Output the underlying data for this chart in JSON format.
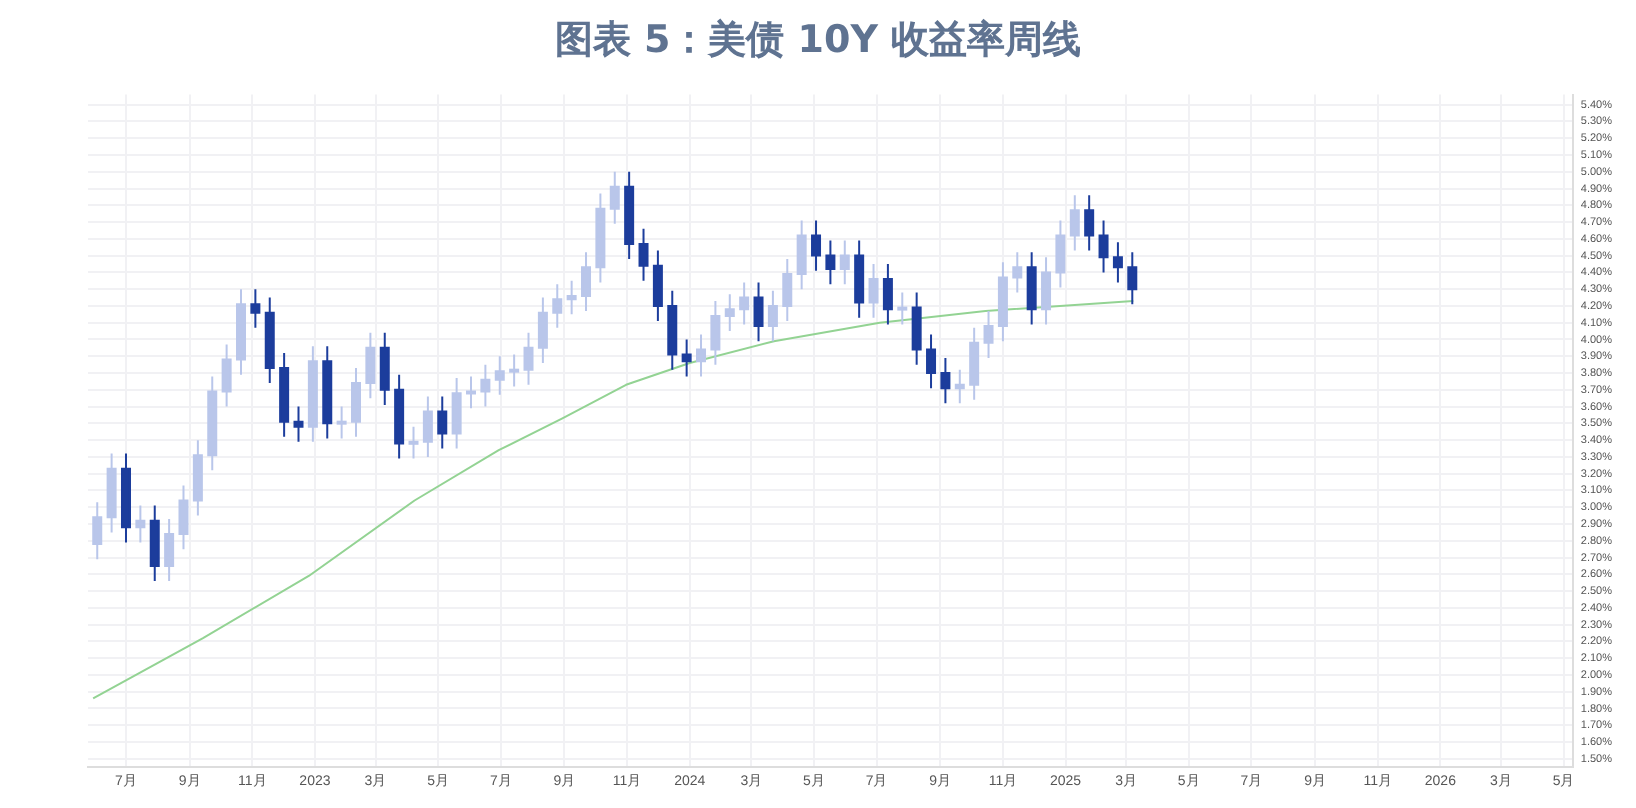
{
  "chart_data": {
    "type": "candlestick",
    "title": "图表 5：美债 10Y 收益率周线",
    "x": [
      "2022-06-03",
      "2022-06-17",
      "2022-07-01",
      "2022-07-15",
      "2022-07-29",
      "2022-08-12",
      "2022-08-26",
      "2022-09-09",
      "2022-09-23",
      "2022-10-07",
      "2022-10-21",
      "2022-11-04",
      "2022-11-18",
      "2022-12-02",
      "2022-12-16",
      "2022-12-30",
      "2023-01-13",
      "2023-01-27",
      "2023-02-10",
      "2023-02-24",
      "2023-03-10",
      "2023-03-24",
      "2023-04-07",
      "2023-04-21",
      "2023-05-05",
      "2023-05-19",
      "2023-06-02",
      "2023-06-16",
      "2023-06-30",
      "2023-07-14",
      "2023-07-28",
      "2023-08-11",
      "2023-08-25",
      "2023-09-08",
      "2023-09-22",
      "2023-10-06",
      "2023-10-20",
      "2023-11-03",
      "2023-11-17",
      "2023-12-01",
      "2023-12-15",
      "2023-12-29",
      "2024-01-12",
      "2024-01-26",
      "2024-02-09",
      "2024-02-23",
      "2024-03-08",
      "2024-03-22",
      "2024-04-05",
      "2024-04-19",
      "2024-05-03",
      "2024-05-17",
      "2024-05-31",
      "2024-06-14",
      "2024-06-28",
      "2024-07-12",
      "2024-07-26",
      "2024-08-09",
      "2024-08-23",
      "2024-09-06",
      "2024-09-20",
      "2024-10-04",
      "2024-10-18",
      "2024-11-01",
      "2024-11-15",
      "2024-11-29",
      "2024-12-13",
      "2024-12-27",
      "2025-01-10",
      "2025-01-24",
      "2025-02-07",
      "2025-02-21",
      "2025-03-07"
    ],
    "ohlc": [
      [
        2.78,
        3.03,
        2.69,
        2.94
      ],
      [
        2.94,
        3.32,
        2.85,
        3.23
      ],
      [
        3.23,
        3.32,
        2.79,
        2.88
      ],
      [
        2.88,
        3.01,
        2.79,
        2.92
      ],
      [
        2.92,
        3.01,
        2.56,
        2.65
      ],
      [
        2.65,
        2.93,
        2.56,
        2.84
      ],
      [
        2.84,
        3.13,
        2.75,
        3.04
      ],
      [
        3.04,
        3.4,
        2.95,
        3.31
      ],
      [
        3.31,
        3.78,
        3.22,
        3.69
      ],
      [
        3.69,
        3.97,
        3.6,
        3.88
      ],
      [
        3.88,
        4.3,
        3.79,
        4.21
      ],
      [
        4.21,
        4.3,
        4.07,
        4.16
      ],
      [
        4.16,
        4.25,
        3.74,
        3.83
      ],
      [
        3.83,
        3.92,
        3.42,
        3.51
      ],
      [
        3.51,
        3.6,
        3.39,
        3.48
      ],
      [
        3.48,
        3.96,
        3.39,
        3.87
      ],
      [
        3.87,
        3.96,
        3.41,
        3.5
      ],
      [
        3.5,
        3.6,
        3.41,
        3.51
      ],
      [
        3.51,
        3.83,
        3.42,
        3.74
      ],
      [
        3.74,
        4.04,
        3.65,
        3.95
      ],
      [
        3.95,
        4.04,
        3.61,
        3.7
      ],
      [
        3.7,
        3.79,
        3.29,
        3.38
      ],
      [
        3.38,
        3.48,
        3.29,
        3.39
      ],
      [
        3.39,
        3.66,
        3.3,
        3.57
      ],
      [
        3.57,
        3.66,
        3.35,
        3.44
      ],
      [
        3.44,
        3.77,
        3.35,
        3.68
      ],
      [
        3.68,
        3.78,
        3.59,
        3.69
      ],
      [
        3.69,
        3.85,
        3.6,
        3.76
      ],
      [
        3.76,
        3.9,
        3.67,
        3.81
      ],
      [
        3.81,
        3.91,
        3.72,
        3.82
      ],
      [
        3.82,
        4.04,
        3.73,
        3.95
      ],
      [
        3.95,
        4.25,
        3.86,
        4.16
      ],
      [
        4.16,
        4.33,
        4.07,
        4.24
      ],
      [
        4.24,
        4.35,
        4.15,
        4.26
      ],
      [
        4.26,
        4.52,
        4.17,
        4.43
      ],
      [
        4.43,
        4.87,
        4.34,
        4.78
      ],
      [
        4.78,
        5.0,
        4.69,
        4.91
      ],
      [
        4.91,
        5.0,
        4.48,
        4.57
      ],
      [
        4.57,
        4.66,
        4.35,
        4.44
      ],
      [
        4.44,
        4.53,
        4.11,
        4.2
      ],
      [
        4.2,
        4.29,
        3.82,
        3.91
      ],
      [
        3.91,
        4.0,
        3.78,
        3.87
      ],
      [
        3.87,
        4.03,
        3.78,
        3.94
      ],
      [
        3.94,
        4.23,
        3.85,
        4.14
      ],
      [
        4.14,
        4.27,
        4.05,
        4.18
      ],
      [
        4.18,
        4.34,
        4.09,
        4.25
      ],
      [
        4.25,
        4.34,
        3.99,
        4.08
      ],
      [
        4.08,
        4.29,
        3.99,
        4.2
      ],
      [
        4.2,
        4.48,
        4.11,
        4.39
      ],
      [
        4.39,
        4.71,
        4.3,
        4.62
      ],
      [
        4.62,
        4.71,
        4.41,
        4.5
      ],
      [
        4.5,
        4.59,
        4.33,
        4.42
      ],
      [
        4.42,
        4.59,
        4.33,
        4.5
      ],
      [
        4.5,
        4.59,
        4.13,
        4.22
      ],
      [
        4.22,
        4.45,
        4.13,
        4.36
      ],
      [
        4.36,
        4.45,
        4.09,
        4.18
      ],
      [
        4.18,
        4.28,
        4.09,
        4.19
      ],
      [
        4.19,
        4.28,
        3.85,
        3.94
      ],
      [
        3.94,
        4.03,
        3.71,
        3.8
      ],
      [
        3.8,
        3.89,
        3.62,
        3.71
      ],
      [
        3.71,
        3.82,
        3.62,
        3.73
      ],
      [
        3.73,
        4.07,
        3.64,
        3.98
      ],
      [
        3.98,
        4.17,
        3.89,
        4.08
      ],
      [
        4.08,
        4.46,
        3.99,
        4.37
      ],
      [
        4.37,
        4.52,
        4.28,
        4.43
      ],
      [
        4.43,
        4.52,
        4.09,
        4.18
      ],
      [
        4.18,
        4.49,
        4.09,
        4.4
      ],
      [
        4.4,
        4.71,
        4.31,
        4.62
      ],
      [
        4.62,
        4.86,
        4.53,
        4.77
      ],
      [
        4.77,
        4.86,
        4.53,
        4.62
      ],
      [
        4.62,
        4.71,
        4.4,
        4.49
      ],
      [
        4.49,
        4.58,
        4.34,
        4.43
      ],
      [
        4.43,
        4.52,
        4.21,
        4.3
      ]
    ],
    "colors": [
      "#b9c6ea",
      "#b9c6ea",
      "#1c3d9c",
      "#b9c6ea",
      "#1c3d9c",
      "#b9c6ea",
      "#b9c6ea",
      "#b9c6ea",
      "#b9c6ea",
      "#b9c6ea",
      "#b9c6ea",
      "#1c3d9c",
      "#1c3d9c",
      "#1c3d9c",
      "#1c3d9c",
      "#b9c6ea",
      "#1c3d9c",
      "#b9c6ea",
      "#b9c6ea",
      "#b9c6ea",
      "#1c3d9c",
      "#1c3d9c",
      "#b9c6ea",
      "#b9c6ea",
      "#1c3d9c",
      "#b9c6ea",
      "#b9c6ea",
      "#b9c6ea",
      "#b9c6ea",
      "#b9c6ea",
      "#b9c6ea",
      "#b9c6ea",
      "#b9c6ea",
      "#b9c6ea",
      "#b9c6ea",
      "#b9c6ea",
      "#b9c6ea",
      "#1c3d9c",
      "#1c3d9c",
      "#1c3d9c",
      "#1c3d9c",
      "#1c3d9c",
      "#b9c6ea",
      "#b9c6ea",
      "#b9c6ea",
      "#b9c6ea",
      "#1c3d9c",
      "#b9c6ea",
      "#b9c6ea",
      "#b9c6ea",
      "#1c3d9c",
      "#1c3d9c",
      "#b9c6ea",
      "#1c3d9c",
      "#b9c6ea",
      "#1c3d9c",
      "#b9c6ea",
      "#1c3d9c",
      "#1c3d9c",
      "#1c3d9c",
      "#b9c6ea",
      "#b9c6ea",
      "#b9c6ea",
      "#b9c6ea",
      "#b9c6ea",
      "#1c3d9c",
      "#b9c6ea",
      "#b9c6ea",
      "#b9c6ea",
      "#1c3d9c",
      "#1c3d9c",
      "#1c3d9c",
      "#1c3d9c"
    ],
    "series": [
      {
        "type": "line",
        "color": "#93d393",
        "x": [
          "2022-05-30",
          "2022-09-14",
          "2022-12-26",
          "2023-04-08",
          "2023-06-29",
          "2023-08-30",
          "2023-10-31",
          "2024-01-01",
          "2024-03-23",
          "2024-07-04",
          "2024-10-15",
          "2025-03-08"
        ],
        "values": [
          1.86,
          2.22,
          2.59,
          3.04,
          3.34,
          3.53,
          3.73,
          3.86,
          3.99,
          4.1,
          4.17,
          4.23
        ]
      }
    ],
    "xlim": [
      "2022-05-25",
      "2026-05-10"
    ],
    "xticks": [
      {
        "value": "2022-07-01",
        "label": "7月"
      },
      {
        "value": "2022-09-01",
        "label": "9月"
      },
      {
        "value": "2022-11-01",
        "label": "11月"
      },
      {
        "value": "2023-01-01",
        "label": "2023"
      },
      {
        "value": "2023-03-01",
        "label": "3月"
      },
      {
        "value": "2023-05-01",
        "label": "5月"
      },
      {
        "value": "2023-07-01",
        "label": "7月"
      },
      {
        "value": "2023-09-01",
        "label": "9月"
      },
      {
        "value": "2023-11-01",
        "label": "11月"
      },
      {
        "value": "2024-01-01",
        "label": "2024"
      },
      {
        "value": "2024-03-01",
        "label": "3月"
      },
      {
        "value": "2024-05-01",
        "label": "5月"
      },
      {
        "value": "2024-07-01",
        "label": "7月"
      },
      {
        "value": "2024-09-01",
        "label": "9月"
      },
      {
        "value": "2024-11-01",
        "label": "11月"
      },
      {
        "value": "2025-01-01",
        "label": "2025"
      },
      {
        "value": "2025-03-01",
        "label": "3月"
      },
      {
        "value": "2025-05-01",
        "label": "5月"
      },
      {
        "value": "2025-07-01",
        "label": "7月"
      },
      {
        "value": "2025-09-01",
        "label": "9月"
      },
      {
        "value": "2025-11-01",
        "label": "11月"
      },
      {
        "value": "2026-01-01",
        "label": "2026"
      },
      {
        "value": "2026-03-01",
        "label": "3月"
      },
      {
        "value": "2026-05-01",
        "label": "5月"
      }
    ],
    "ylim": [
      1.45,
      5.46
    ],
    "yticks": [
      {
        "value": 5.4,
        "label": "5.40%"
      },
      {
        "value": 5.3,
        "label": "5.30%"
      },
      {
        "value": 5.2,
        "label": "5.20%"
      },
      {
        "value": 5.1,
        "label": "5.10%"
      },
      {
        "value": 5.0,
        "label": "5.00%"
      },
      {
        "value": 4.9,
        "label": "4.90%"
      },
      {
        "value": 4.8,
        "label": "4.80%"
      },
      {
        "value": 4.7,
        "label": "4.70%"
      },
      {
        "value": 4.6,
        "label": "4.60%"
      },
      {
        "value": 4.5,
        "label": "4.50%"
      },
      {
        "value": 4.4,
        "label": "4.40%"
      },
      {
        "value": 4.3,
        "label": "4.30%"
      },
      {
        "value": 4.2,
        "label": "4.20%"
      },
      {
        "value": 4.1,
        "label": "4.10%"
      },
      {
        "value": 4.0,
        "label": "4.00%"
      },
      {
        "value": 3.9,
        "label": "3.90%"
      },
      {
        "value": 3.8,
        "label": "3.80%"
      },
      {
        "value": 3.7,
        "label": "3.70%"
      },
      {
        "value": 3.6,
        "label": "3.60%"
      },
      {
        "value": 3.5,
        "label": "3.50%"
      },
      {
        "value": 3.4,
        "label": "3.40%"
      },
      {
        "value": 3.3,
        "label": "3.30%"
      },
      {
        "value": 3.2,
        "label": "3.20%"
      },
      {
        "value": 3.1,
        "label": "3.10%"
      },
      {
        "value": 3.0,
        "label": "3.00%"
      },
      {
        "value": 2.9,
        "label": "2.90%"
      },
      {
        "value": 2.8,
        "label": "2.80%"
      },
      {
        "value": 2.7,
        "label": "2.70%"
      },
      {
        "value": 2.6,
        "label": "2.60%"
      },
      {
        "value": 2.5,
        "label": "2.50%"
      },
      {
        "value": 2.4,
        "label": "2.40%"
      },
      {
        "value": 2.3,
        "label": "2.30%"
      },
      {
        "value": 2.2,
        "label": "2.20%"
      },
      {
        "value": 2.1,
        "label": "2.10%"
      },
      {
        "value": 2.0,
        "label": "2.00%"
      },
      {
        "value": 1.9,
        "label": "1.90%"
      },
      {
        "value": 1.8,
        "label": "1.80%"
      },
      {
        "value": 1.7,
        "label": "1.70%"
      },
      {
        "value": 1.6,
        "label": "1.60%"
      },
      {
        "value": 1.5,
        "label": "1.50%"
      }
    ],
    "grid": true
  }
}
